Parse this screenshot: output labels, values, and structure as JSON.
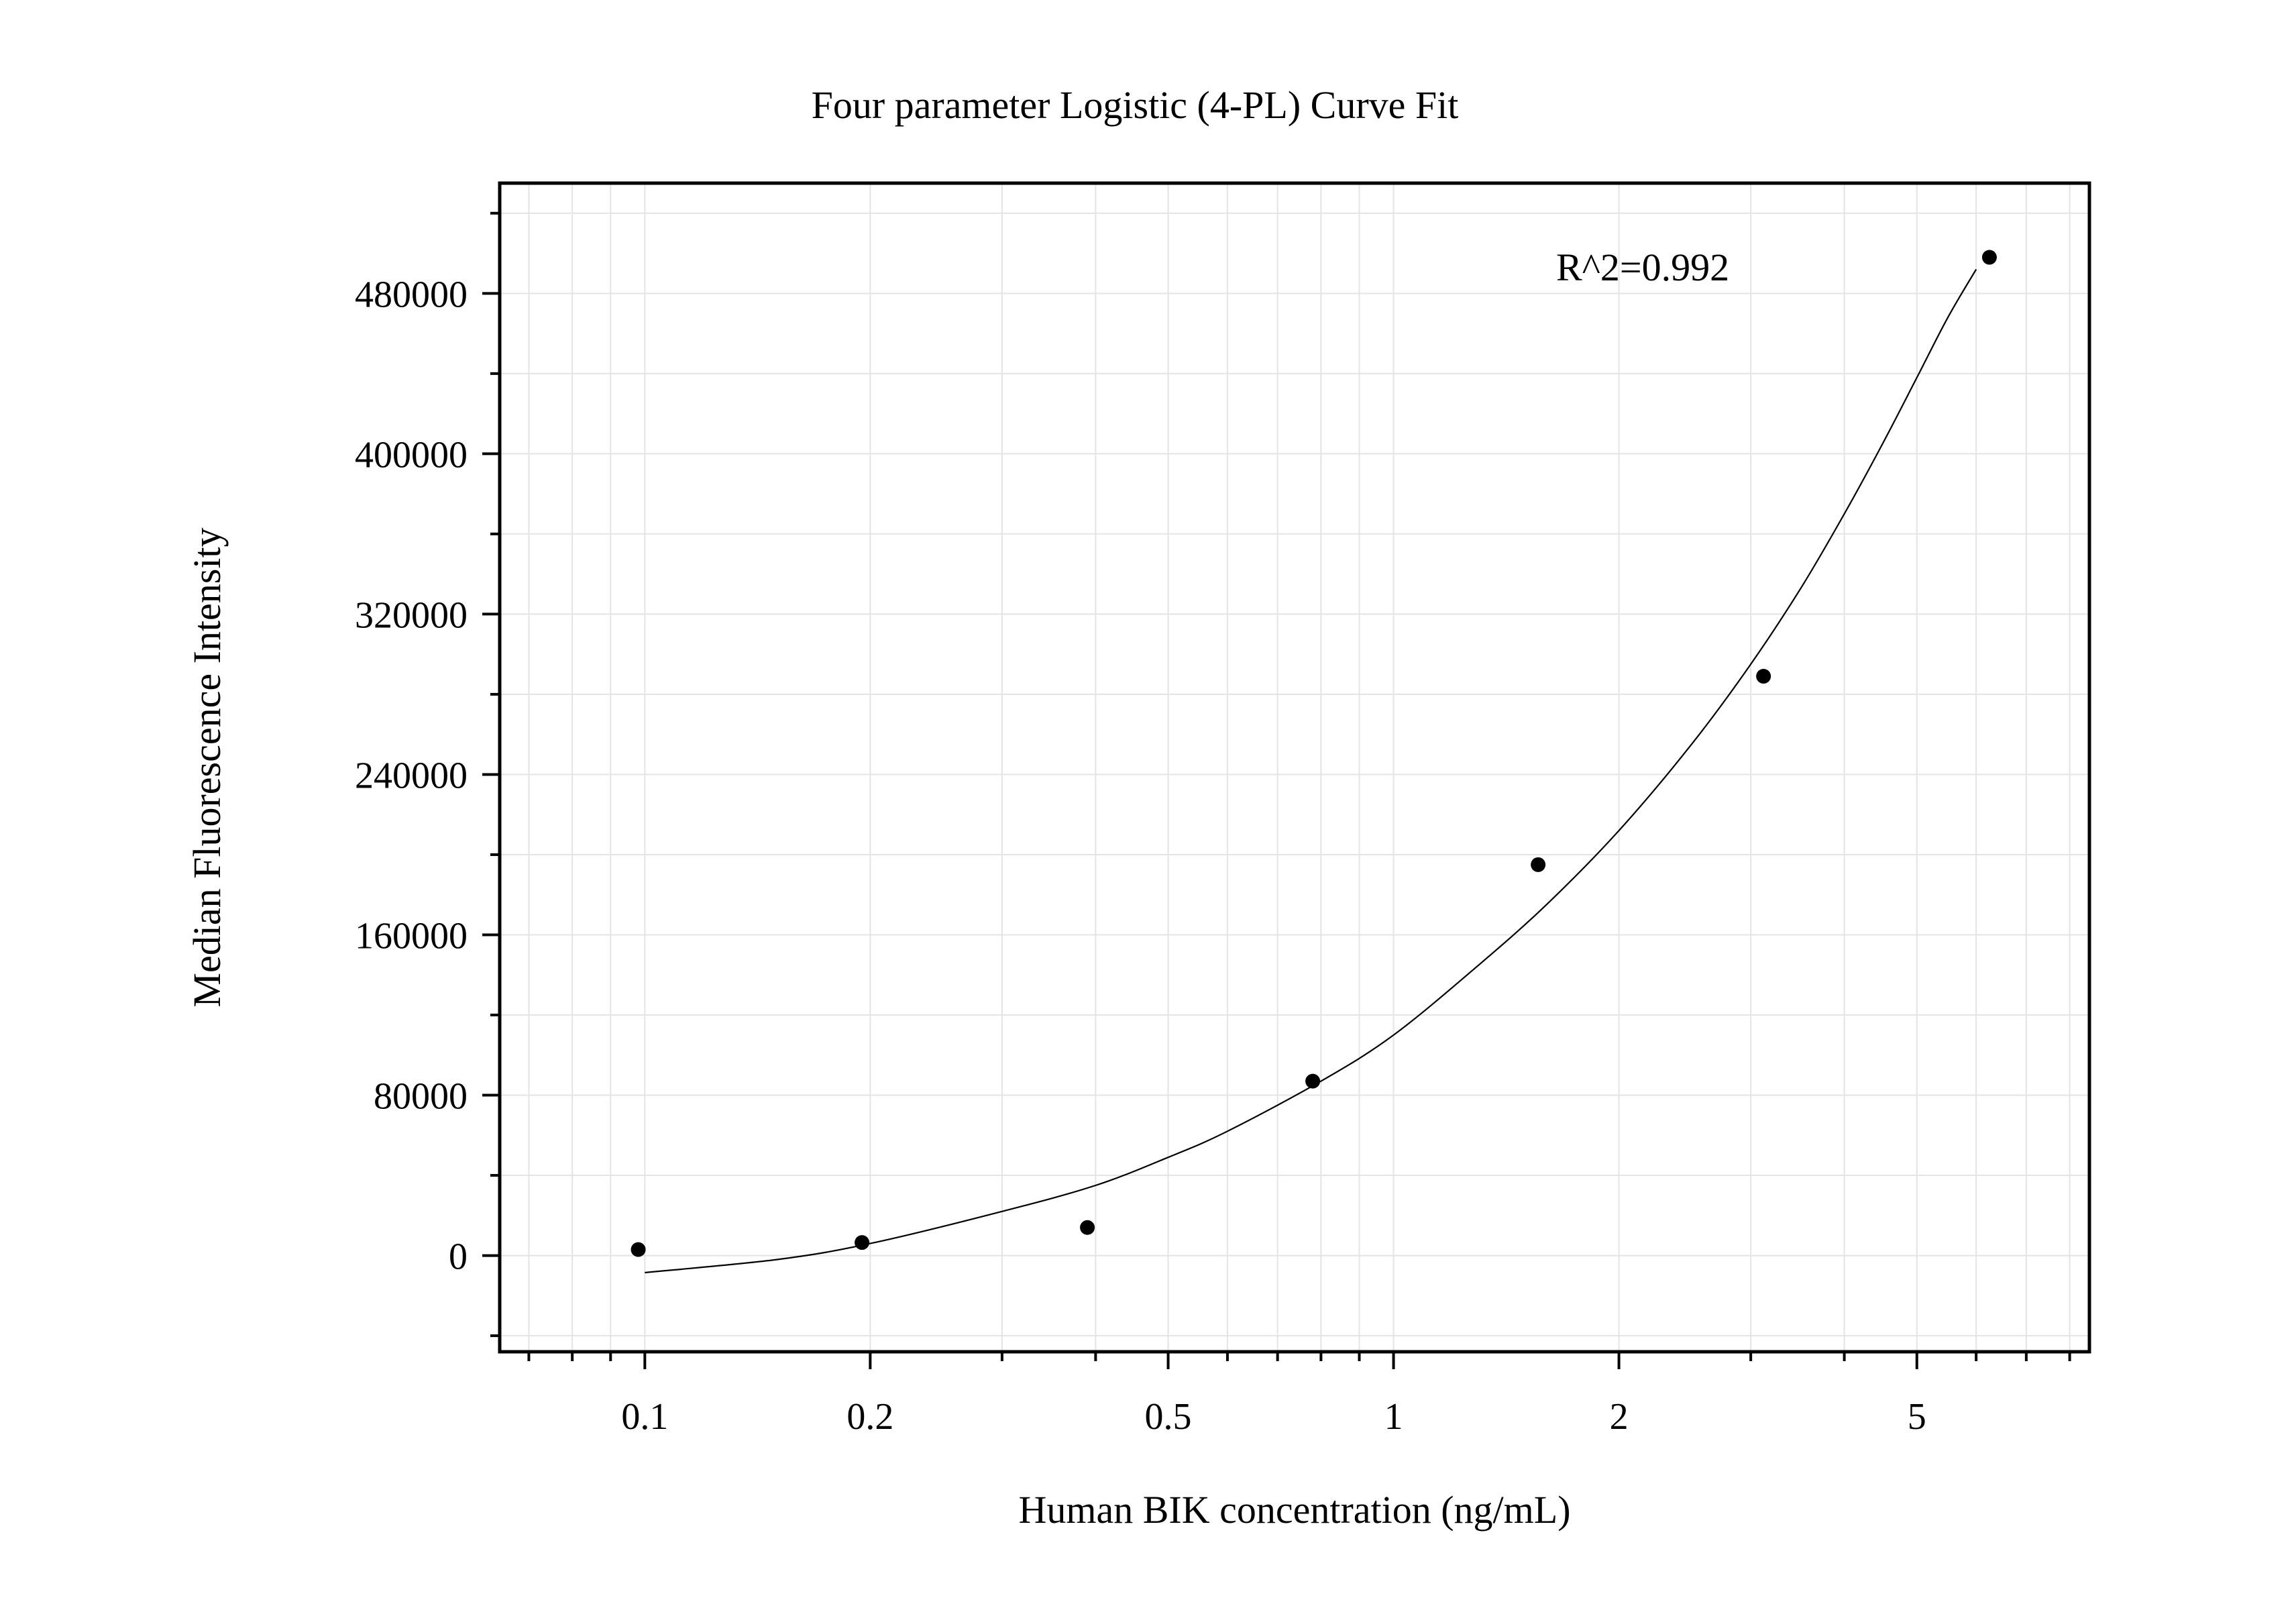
{
  "chart_data": {
    "type": "scatter",
    "title": "Four parameter Logistic (4-PL) Curve Fit",
    "xlabel": "Human BIK concentration (ng/mL)",
    "ylabel": "Median Fluorescence Intensity",
    "x_scale": "log",
    "y_scale": "linear",
    "xlim": [
      0.064,
      8.5
    ],
    "ylim": [
      -48000,
      535000
    ],
    "x_ticks": [
      0.1,
      0.2,
      0.5,
      1,
      2,
      5
    ],
    "x_tick_labels": [
      "0.1",
      "0.2",
      "0.5",
      "1",
      "2",
      "5"
    ],
    "x_minor_ticks": [
      0.07,
      0.08,
      0.09,
      0.3,
      0.4,
      0.6,
      0.7,
      0.8,
      0.9,
      3,
      4,
      6,
      7,
      8
    ],
    "y_ticks": [
      0,
      80000,
      160000,
      240000,
      320000,
      400000,
      480000
    ],
    "y_tick_labels": [
      "0",
      "80000",
      "160000",
      "240000",
      "320000",
      "400000",
      "480000"
    ],
    "y_minor_ticks": [
      -40000,
      40000,
      120000,
      200000,
      280000,
      360000,
      440000,
      520000
    ],
    "grid": true,
    "legend": "none",
    "points": {
      "x": [
        0.098,
        0.195,
        0.39,
        0.78,
        1.56,
        3.12,
        6.25
      ],
      "y": [
        3000,
        6500,
        14000,
        87000,
        195000,
        289000,
        498000
      ]
    },
    "fit_curve": {
      "x": [
        0.1,
        0.15,
        0.2,
        0.3,
        0.4,
        0.5,
        0.6,
        0.8,
        1,
        1.3,
        1.6,
        2,
        2.5,
        3,
        3.5,
        4,
        4.5,
        5,
        5.5,
        6
      ],
      "y": [
        -8500,
        -2000,
        6000,
        22000,
        35000,
        49000,
        62000,
        87000,
        110000,
        145000,
        175000,
        212000,
        255000,
        295000,
        333000,
        370000,
        405000,
        438000,
        468000,
        492000
      ]
    },
    "annotation": "R^2=0.992"
  }
}
